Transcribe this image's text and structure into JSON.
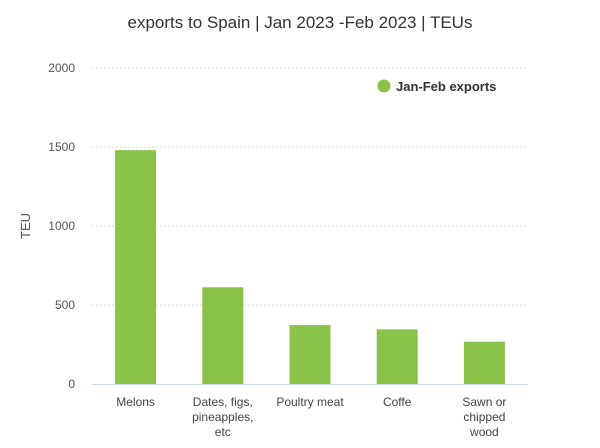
{
  "chart_data": {
    "type": "bar",
    "title": "exports to Spain | Jan 2023 -Feb 2023 | TEUs",
    "xlabel": "",
    "ylabel": "TEU",
    "ylim": [
      0,
      2000
    ],
    "yticks": [
      0,
      500,
      1000,
      1500,
      2000
    ],
    "grid": true,
    "legend_position": "top-right",
    "categories": [
      [
        "Melons"
      ],
      [
        "Dates, figs,",
        "pineapples,",
        "etc"
      ],
      [
        "Poultry meat"
      ],
      [
        "Coffe"
      ],
      [
        "Sawn or",
        "chipped",
        "wood"
      ]
    ],
    "series": [
      {
        "name": "Jan-Feb exports",
        "color": "#8bc34a",
        "values": [
          1480,
          612,
          373,
          346,
          268
        ]
      }
    ]
  }
}
